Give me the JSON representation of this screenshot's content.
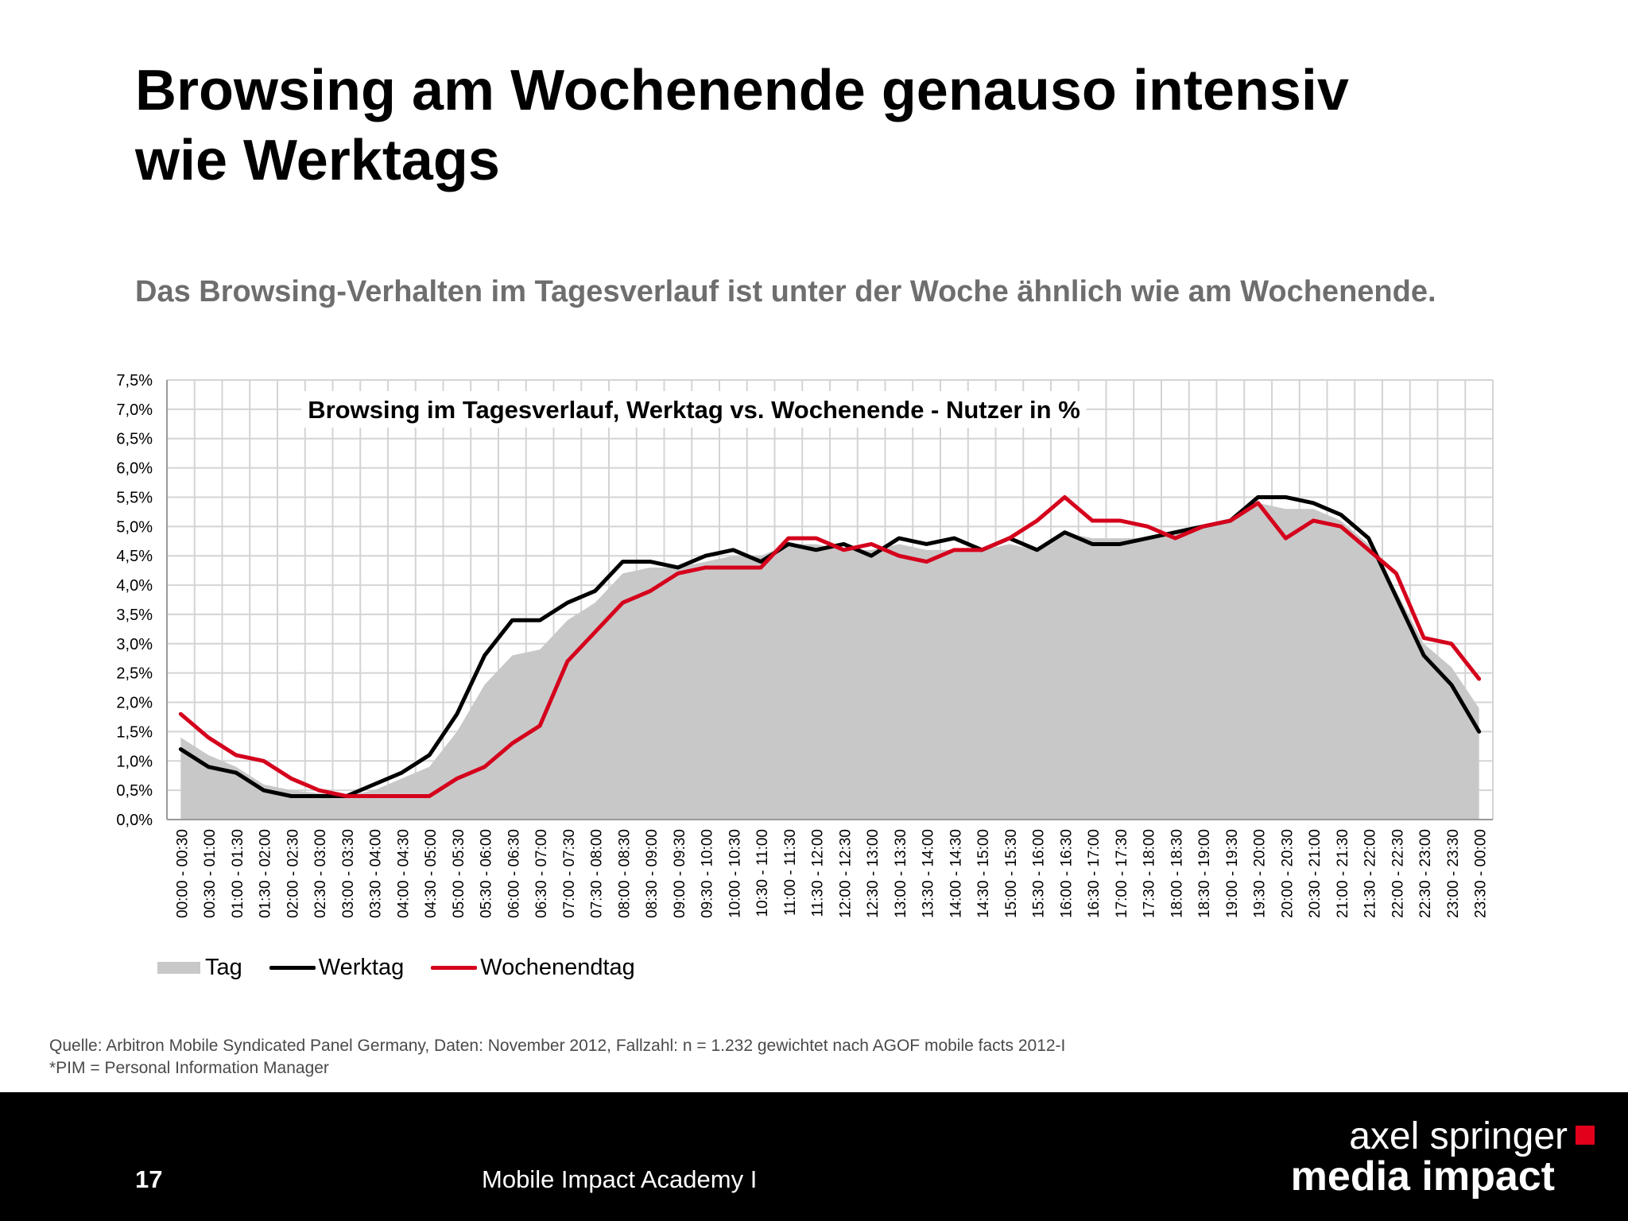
{
  "slide": {
    "title_line1": "Browsing am Wochenende genauso intensiv",
    "title_line2": "wie Werktags",
    "subtitle": "Das Browsing-Verhalten im Tagesverlauf ist unter der Woche ähnlich wie am Wochenende.",
    "source_line1": "Quelle: Arbitron Mobile Syndicated Panel Germany, Daten: November 2012, Fallzahl: n = 1.232 gewichtet nach AGOF mobile facts 2012-I",
    "source_line2": "*PIM = Personal Information Manager",
    "page_number": "17",
    "footer_text": "Mobile Impact Academy I",
    "logo_line1": "axel springer",
    "logo_line2": "media impact"
  },
  "colors": {
    "tag": "#c8c8c8",
    "werktag": "#000000",
    "wochenendtag": "#d5001c",
    "logo_square": "#e2001a"
  },
  "chart_data": {
    "type": "area",
    "title": "Browsing im Tagesverlauf, Werktag vs. Wochenende - Nutzer in %",
    "xlabel": "",
    "ylabel": "",
    "ylim": [
      0,
      7.5
    ],
    "yticks": [
      "0,0%",
      "0,5%",
      "1,0%",
      "1,5%",
      "2,0%",
      "2,5%",
      "3,0%",
      "3,5%",
      "4,0%",
      "4,5%",
      "5,0%",
      "5,5%",
      "6,0%",
      "6,5%",
      "7,0%",
      "7,5%"
    ],
    "grid": true,
    "legend_position": "bottom-left",
    "categories": [
      "00:00 - 00:30",
      "00:30 - 01:00",
      "01:00 - 01:30",
      "01:30 - 02:00",
      "02:00 - 02:30",
      "02:30 - 03:00",
      "03:00 - 03:30",
      "03:30 - 04:00",
      "04:00 - 04:30",
      "04:30 - 05:00",
      "05:00 - 05:30",
      "05:30 - 06:00",
      "06:00 - 06:30",
      "06:30 - 07:00",
      "07:00 - 07:30",
      "07:30 - 08:00",
      "08:00 - 08:30",
      "08:30 - 09:00",
      "09:00 - 09:30",
      "09:30 - 10:00",
      "10:00 - 10:30",
      "10:30 - 11:00",
      "11:00 - 11:30",
      "11:30 - 12:00",
      "12:00 - 12:30",
      "12:30 - 13:00",
      "13:00 - 13:30",
      "13:30 - 14:00",
      "14:00 - 14:30",
      "14:30 - 15:00",
      "15:00 - 15:30",
      "15:30 - 16:00",
      "16:00 - 16:30",
      "16:30 - 17:00",
      "17:00 - 17:30",
      "17:30 - 18:00",
      "18:00 - 18:30",
      "18:30 - 19:00",
      "19:00 - 19:30",
      "19:30 - 20:00",
      "20:00 - 20:30",
      "20:30 - 21:00",
      "21:00 - 21:30",
      "21:30 - 22:00",
      "22:00 - 22:30",
      "22:30 - 23:00",
      "23:00 - 23:30",
      "23:30 - 00:00"
    ],
    "series": [
      {
        "name": "Tag",
        "kind": "area",
        "values": [
          1.4,
          1.1,
          0.9,
          0.6,
          0.5,
          0.45,
          0.4,
          0.5,
          0.7,
          0.9,
          1.5,
          2.3,
          2.8,
          2.9,
          3.4,
          3.7,
          4.2,
          4.3,
          4.3,
          4.4,
          4.5,
          4.5,
          4.7,
          4.7,
          4.6,
          4.6,
          4.7,
          4.6,
          4.6,
          4.6,
          4.7,
          4.6,
          4.9,
          4.8,
          4.8,
          4.8,
          4.9,
          5.0,
          5.1,
          5.4,
          5.3,
          5.3,
          5.1,
          4.7,
          3.9,
          3.0,
          2.6,
          1.9
        ]
      },
      {
        "name": "Werktag",
        "kind": "line",
        "values": [
          1.2,
          0.9,
          0.8,
          0.5,
          0.4,
          0.4,
          0.4,
          0.6,
          0.8,
          1.1,
          1.8,
          2.8,
          3.4,
          3.4,
          3.7,
          3.9,
          4.4,
          4.4,
          4.3,
          4.5,
          4.6,
          4.4,
          4.7,
          4.6,
          4.7,
          4.5,
          4.8,
          4.7,
          4.8,
          4.6,
          4.8,
          4.6,
          4.9,
          4.7,
          4.7,
          4.8,
          4.9,
          5.0,
          5.1,
          5.5,
          5.5,
          5.4,
          5.2,
          4.8,
          3.8,
          2.8,
          2.3,
          1.5
        ]
      },
      {
        "name": "Wochenendtag",
        "kind": "line",
        "values": [
          1.8,
          1.4,
          1.1,
          1.0,
          0.7,
          0.5,
          0.4,
          0.4,
          0.4,
          0.4,
          0.7,
          0.9,
          1.3,
          1.6,
          2.7,
          3.2,
          3.7,
          3.9,
          4.2,
          4.3,
          4.3,
          4.3,
          4.8,
          4.8,
          4.6,
          4.7,
          4.5,
          4.4,
          4.6,
          4.6,
          4.8,
          5.1,
          5.5,
          5.1,
          5.1,
          5.0,
          4.8,
          5.0,
          5.1,
          5.4,
          4.8,
          5.1,
          5.0,
          4.6,
          4.2,
          3.1,
          3.0,
          2.4
        ]
      }
    ]
  }
}
